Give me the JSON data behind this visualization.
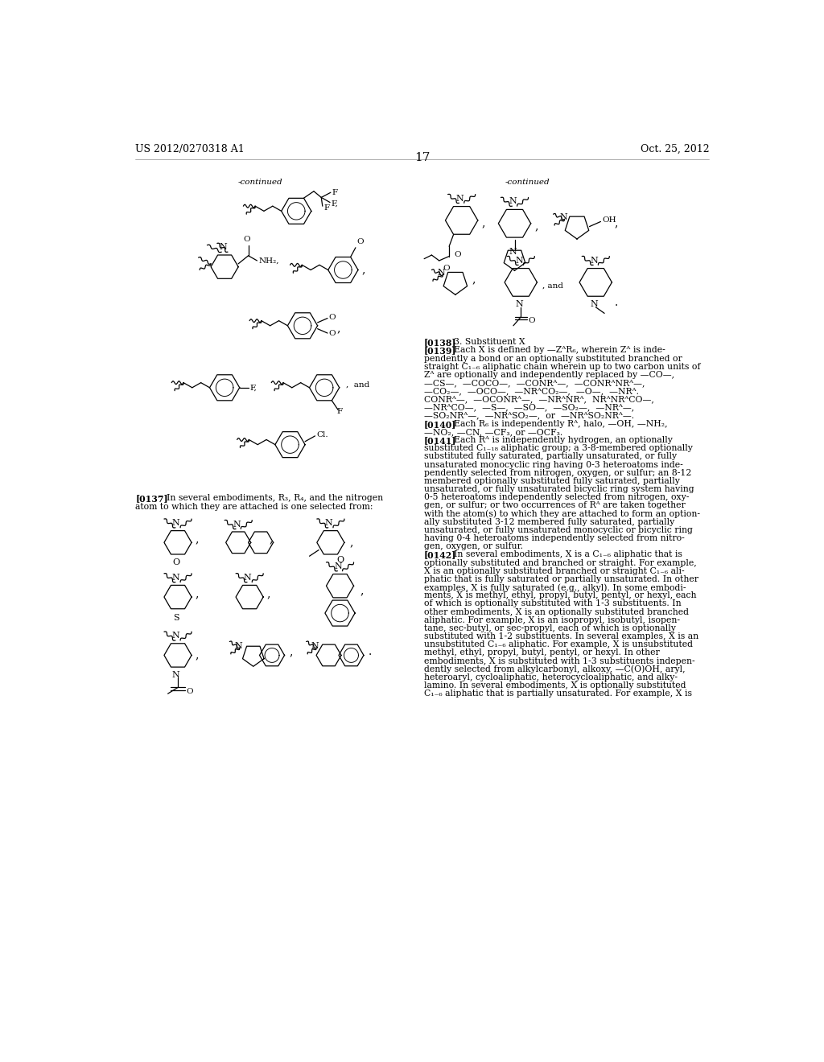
{
  "page_number": "17",
  "header_left": "US 2012/0270318 A1",
  "header_right": "Oct. 25, 2012",
  "background_color": "#ffffff",
  "text_color": "#000000",
  "fs_header": 9,
  "fs_body": 7.8,
  "fs_small": 7.5
}
